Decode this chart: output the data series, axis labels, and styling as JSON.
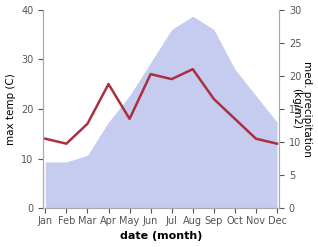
{
  "months": [
    "Jan",
    "Feb",
    "Mar",
    "Apr",
    "May",
    "Jun",
    "Jul",
    "Aug",
    "Sep",
    "Oct",
    "Nov",
    "Dec"
  ],
  "month_indices": [
    0,
    1,
    2,
    3,
    4,
    5,
    6,
    7,
    8,
    9,
    10,
    11
  ],
  "temp_C": [
    14,
    13,
    17,
    25,
    18,
    27,
    26,
    28,
    22,
    18,
    14,
    13
  ],
  "precip_kg": [
    7,
    7,
    8,
    13,
    17,
    22,
    27,
    29,
    27,
    21,
    17,
    13
  ],
  "temp_color": "#aa3040",
  "precip_color": "#bbc4ee",
  "ylabel_left": "max temp (C)",
  "ylabel_right": "med. precipitation\n(kg/m2)",
  "xlabel": "date (month)",
  "ylim_left": [
    0,
    40
  ],
  "ylim_right": [
    0,
    30
  ],
  "yticks_left": [
    0,
    10,
    20,
    30,
    40
  ],
  "yticks_right": [
    0,
    5,
    10,
    15,
    20,
    25,
    30
  ],
  "bg_color": "#ffffff",
  "temp_linewidth": 1.8,
  "xlabel_fontsize": 8,
  "ylabel_fontsize": 7.5,
  "tick_fontsize": 7
}
